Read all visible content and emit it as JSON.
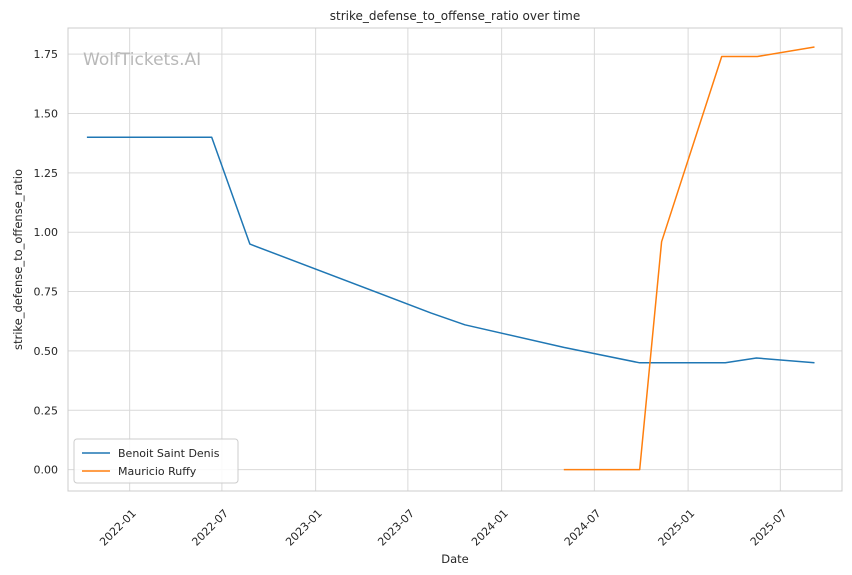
{
  "chart_data": {
    "type": "line",
    "title": "strike_defense_to_offense_ratio over time",
    "xlabel": "Date",
    "ylabel": "strike_defense_to_offense_ratio",
    "watermark": "WolfTickets.AI",
    "x_ticks": [
      "2022-01",
      "2022-07",
      "2023-01",
      "2023-07",
      "2024-01",
      "2024-07",
      "2025-01",
      "2025-07"
    ],
    "y_ticks": [
      "0.00",
      "0.25",
      "0.50",
      "0.75",
      "1.00",
      "1.25",
      "1.50",
      "1.75"
    ],
    "xlim": [
      "2021-09-02",
      "2025-10-30"
    ],
    "ylim": [
      -0.09,
      1.86
    ],
    "grid": true,
    "legend_position": "lower-left",
    "series": [
      {
        "name": "Benoit Saint Denis",
        "color": "#1f77b4",
        "x": [
          "2021-10-09",
          "2022-06-11",
          "2022-08-25",
          "2023-08-15",
          "2023-10-21",
          "2024-05-02",
          "2024-09-28",
          "2025-03-15",
          "2025-05-15",
          "2025-09-06"
        ],
        "y": [
          1.4,
          1.4,
          0.95,
          0.66,
          0.61,
          0.515,
          0.45,
          0.45,
          0.47,
          0.45
        ]
      },
      {
        "name": "Mauricio Ruffy",
        "color": "#ff7f0e",
        "x": [
          "2024-05-02",
          "2024-09-28",
          "2024-11-10",
          "2025-03-08",
          "2025-05-17",
          "2025-09-06"
        ],
        "y": [
          0.0,
          0.0,
          0.96,
          1.74,
          1.74,
          1.78
        ]
      }
    ]
  }
}
